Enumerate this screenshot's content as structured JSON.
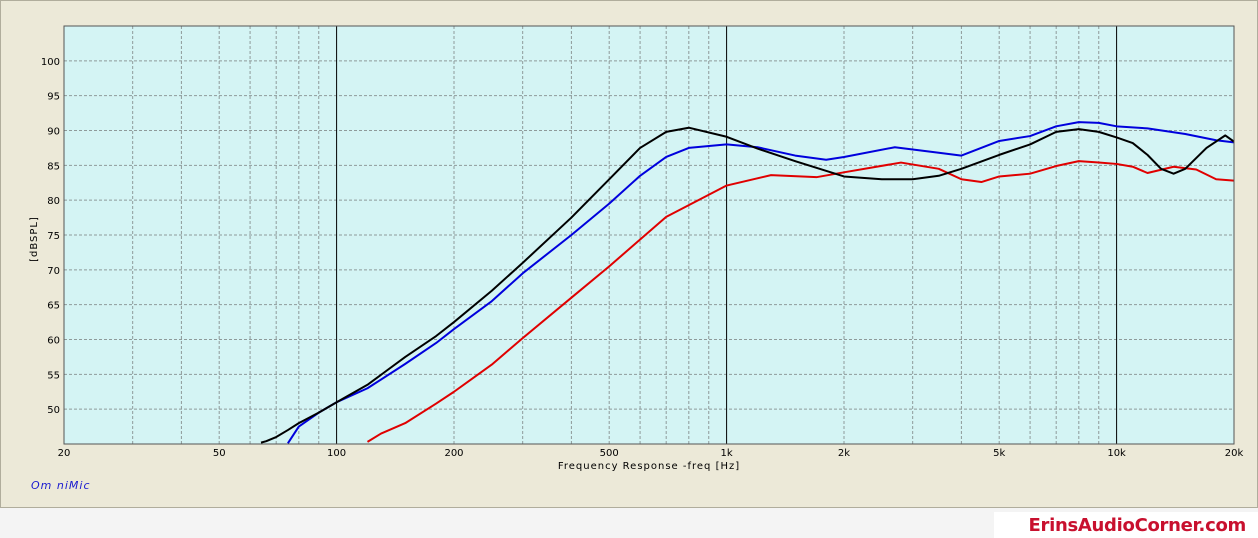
{
  "brand_label": "Om niMic",
  "watermark": "ErinsAudioCorner.com",
  "chart_data": {
    "type": "line",
    "title": "",
    "xlabel": "Frequency Response -freq [Hz]",
    "ylabel": "[dBSPL]",
    "xscale": "log",
    "xlim": [
      20,
      20000
    ],
    "ylim": [
      45,
      105
    ],
    "yticks": [
      50,
      55,
      60,
      65,
      70,
      75,
      80,
      85,
      90,
      95,
      100
    ],
    "xtick_labels": [
      {
        "value": 20,
        "label": "20"
      },
      {
        "value": 50,
        "label": "50"
      },
      {
        "value": 100,
        "label": "100"
      },
      {
        "value": 200,
        "label": "200"
      },
      {
        "value": 500,
        "label": "500"
      },
      {
        "value": 1000,
        "label": "1k"
      },
      {
        "value": 2000,
        "label": "2k"
      },
      {
        "value": 5000,
        "label": "5k"
      },
      {
        "value": 10000,
        "label": "10k"
      },
      {
        "value": 20000,
        "label": "20k"
      }
    ],
    "grid": true,
    "colors": {
      "plot_bg": "#d4f4f4",
      "grid": "#8e9a9a",
      "major_grid": "#000000"
    },
    "series": [
      {
        "color": "#e00000",
        "points": [
          [
            120,
            45.3
          ],
          [
            130,
            46.5
          ],
          [
            150,
            48
          ],
          [
            180,
            50.8
          ],
          [
            200,
            52.5
          ],
          [
            250,
            56.4
          ],
          [
            300,
            60.2
          ],
          [
            400,
            66
          ],
          [
            500,
            70.5
          ],
          [
            700,
            77.6
          ],
          [
            1000,
            82.1
          ],
          [
            1300,
            83.6
          ],
          [
            1700,
            83.3
          ],
          [
            2000,
            84
          ],
          [
            2800,
            85.4
          ],
          [
            3500,
            84.5
          ],
          [
            4000,
            83
          ],
          [
            4500,
            82.6
          ],
          [
            5000,
            83.4
          ],
          [
            6000,
            83.8
          ],
          [
            7000,
            84.9
          ],
          [
            8000,
            85.6
          ],
          [
            9000,
            85.4
          ],
          [
            10000,
            85.2
          ],
          [
            11000,
            84.8
          ],
          [
            12000,
            83.9
          ],
          [
            14000,
            84.8
          ],
          [
            16000,
            84.4
          ],
          [
            18000,
            83
          ],
          [
            20000,
            82.8
          ]
        ]
      },
      {
        "color": "#0000dd",
        "points": [
          [
            75,
            45.1
          ],
          [
            80,
            47.5
          ],
          [
            90,
            49.5
          ],
          [
            100,
            51
          ],
          [
            120,
            53
          ],
          [
            150,
            56.5
          ],
          [
            180,
            59.5
          ],
          [
            200,
            61.5
          ],
          [
            250,
            65.5
          ],
          [
            300,
            69.5
          ],
          [
            400,
            75
          ],
          [
            500,
            79.5
          ],
          [
            600,
            83.5
          ],
          [
            700,
            86.2
          ],
          [
            800,
            87.5
          ],
          [
            1000,
            88
          ],
          [
            1200,
            87.6
          ],
          [
            1500,
            86.4
          ],
          [
            1800,
            85.8
          ],
          [
            2000,
            86.2
          ],
          [
            2700,
            87.6
          ],
          [
            3500,
            86.8
          ],
          [
            4000,
            86.4
          ],
          [
            5000,
            88.5
          ],
          [
            6000,
            89.2
          ],
          [
            7000,
            90.6
          ],
          [
            8000,
            91.2
          ],
          [
            9000,
            91.1
          ],
          [
            10000,
            90.6
          ],
          [
            12000,
            90.3
          ],
          [
            15000,
            89.5
          ],
          [
            18000,
            88.6
          ],
          [
            20000,
            88.3
          ]
        ]
      },
      {
        "color": "#000000",
        "points": [
          [
            64,
            45.2
          ],
          [
            66,
            45.4
          ],
          [
            70,
            46
          ],
          [
            75,
            47
          ],
          [
            80,
            48
          ],
          [
            90,
            49.5
          ],
          [
            100,
            51
          ],
          [
            120,
            53.5
          ],
          [
            150,
            57.5
          ],
          [
            180,
            60.5
          ],
          [
            200,
            62.5
          ],
          [
            250,
            67
          ],
          [
            300,
            71
          ],
          [
            400,
            77.5
          ],
          [
            500,
            83
          ],
          [
            600,
            87.5
          ],
          [
            700,
            89.8
          ],
          [
            800,
            90.4
          ],
          [
            1000,
            89.1
          ],
          [
            1200,
            87.4
          ],
          [
            1500,
            85.6
          ],
          [
            2000,
            83.4
          ],
          [
            2500,
            83
          ],
          [
            3000,
            83
          ],
          [
            3500,
            83.5
          ],
          [
            4000,
            84.5
          ],
          [
            5000,
            86.5
          ],
          [
            6000,
            88
          ],
          [
            7000,
            89.8
          ],
          [
            8000,
            90.2
          ],
          [
            9000,
            89.8
          ],
          [
            10000,
            89
          ],
          [
            11000,
            88.2
          ],
          [
            12000,
            86.5
          ],
          [
            13000,
            84.5
          ],
          [
            14000,
            83.8
          ],
          [
            15000,
            84.5
          ],
          [
            17000,
            87.5
          ],
          [
            19000,
            89.3
          ],
          [
            20000,
            88.4
          ]
        ]
      }
    ]
  }
}
